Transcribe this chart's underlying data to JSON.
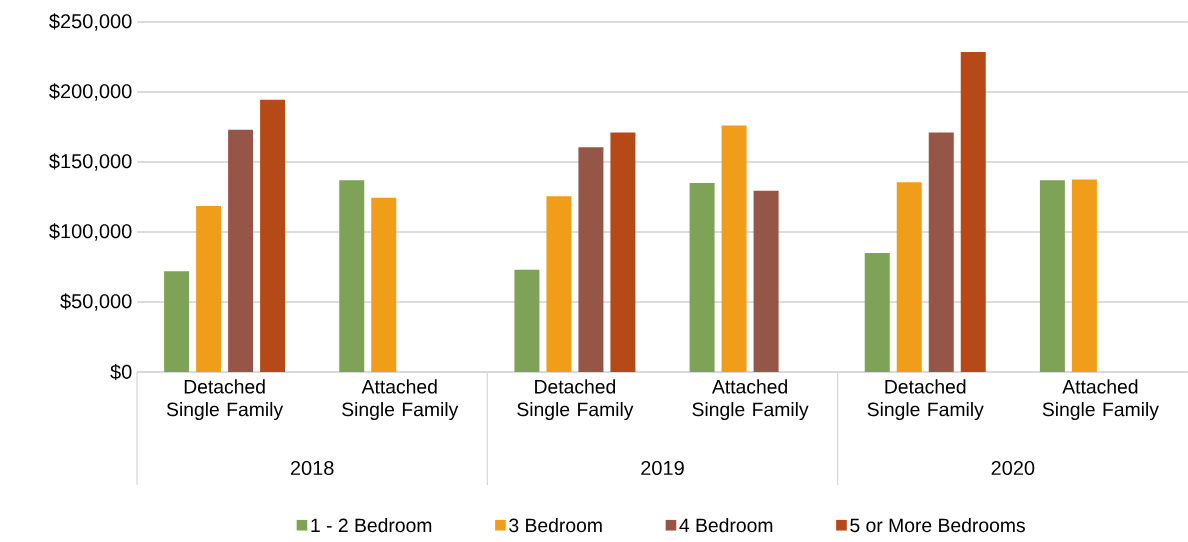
{
  "chart_data": {
    "type": "bar",
    "categories": [
      "Detached Single Family",
      "Attached Single Family",
      "Detached Single Family",
      "Attached Single Family",
      "Detached Single Family",
      "Attached Single Family"
    ],
    "series": [
      {
        "name": "1 - 2 Bedroom",
        "color": "#7ea356",
        "values": [
          72000,
          137000,
          73000,
          135000,
          85000,
          137000
        ]
      },
      {
        "name": "3 Bedroom",
        "color": "#f09d1a",
        "values": [
          118500,
          124500,
          125500,
          176000,
          135500,
          137500
        ]
      },
      {
        "name": "4 Bedroom",
        "color": "#955648",
        "values": [
          173000,
          null,
          160500,
          129500,
          171000,
          null
        ]
      },
      {
        "name": "5 or More Bedrooms",
        "color": "#b54917",
        "values": [
          194500,
          null,
          171000,
          null,
          228500,
          null
        ]
      }
    ],
    "ylim": [
      0,
      250000
    ],
    "yticks": [
      {
        "value": 0,
        "label": "$0"
      },
      {
        "value": 50000,
        "label": "$50,000"
      },
      {
        "value": 100000,
        "label": "$100,000"
      },
      {
        "value": 150000,
        "label": "$150,000"
      },
      {
        "value": 200000,
        "label": "$200,000"
      },
      {
        "value": 250000,
        "label": "$250,000"
      }
    ],
    "annotations": [
      "2018",
      "2019",
      "2020"
    ],
    "grid": "y",
    "legend": "bottom"
  }
}
